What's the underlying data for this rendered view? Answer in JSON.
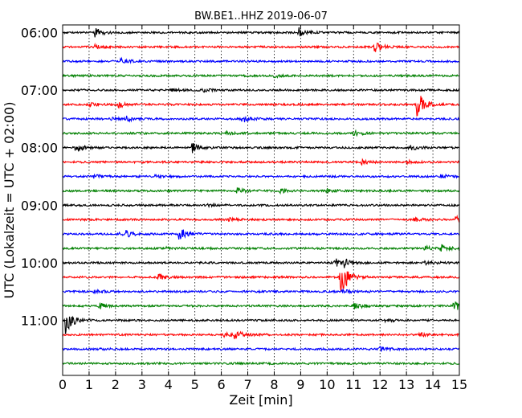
{
  "chart_data": {
    "type": "line",
    "title": "BW.BE1..HHZ 2019-06-07",
    "xlabel": "Zeit  [min]",
    "ylabel": "UTC (Lokalzeit = UTC + 02:00)",
    "xlim": [
      0,
      15
    ],
    "x_ticks": [
      "0",
      "1",
      "2",
      "3",
      "4",
      "5",
      "6",
      "7",
      "8",
      "9",
      "10",
      "11",
      "12",
      "13",
      "14",
      "15"
    ],
    "y_tick_labels": [
      "06:00",
      "07:00",
      "08:00",
      "09:00",
      "10:00",
      "11:00"
    ],
    "x_grid": "dotted",
    "trace_interval_min": 15,
    "colors": [
      "#000000",
      "#ff0000",
      "#0000ff",
      "#008000"
    ],
    "traces": [
      {
        "start": "06:00",
        "color": "#000000",
        "events": [
          {
            "t": 1.2,
            "amp": 0.35
          },
          {
            "t": 8.9,
            "amp": 0.4
          }
        ]
      },
      {
        "start": "06:15",
        "color": "#ff0000",
        "events": [
          {
            "t": 11.8,
            "amp": 0.35
          },
          {
            "t": 1.2,
            "amp": 0.15
          }
        ]
      },
      {
        "start": "06:30",
        "color": "#0000ff",
        "events": [
          {
            "t": 2.2,
            "amp": 0.2
          }
        ]
      },
      {
        "start": "06:45",
        "color": "#008000",
        "events": [
          {
            "t": 8.0,
            "amp": 0.12
          }
        ]
      },
      {
        "start": "07:00",
        "color": "#000000",
        "events": [
          {
            "t": 4.1,
            "amp": 0.15
          },
          {
            "t": 5.3,
            "amp": 0.12
          }
        ]
      },
      {
        "start": "07:15",
        "color": "#ff0000",
        "events": [
          {
            "t": 13.4,
            "amp": 1.0
          },
          {
            "t": 2.1,
            "amp": 0.25
          },
          {
            "t": 1.0,
            "amp": 0.15
          }
        ]
      },
      {
        "start": "07:30",
        "color": "#0000ff",
        "events": [
          {
            "t": 6.8,
            "amp": 0.3
          },
          {
            "t": 2.4,
            "amp": 0.2
          },
          {
            "t": 1.8,
            "amp": 0.12
          }
        ]
      },
      {
        "start": "07:45",
        "color": "#008000",
        "events": [
          {
            "t": 11.0,
            "amp": 0.2
          },
          {
            "t": 6.2,
            "amp": 0.12
          }
        ]
      },
      {
        "start": "08:00",
        "color": "#000000",
        "events": [
          {
            "t": 0.5,
            "amp": 0.3
          },
          {
            "t": 4.9,
            "amp": 0.35
          },
          {
            "t": 13.1,
            "amp": 0.2
          }
        ]
      },
      {
        "start": "08:15",
        "color": "#ff0000",
        "events": [
          {
            "t": 11.3,
            "amp": 0.15
          },
          {
            "t": 13.0,
            "amp": 0.12
          }
        ]
      },
      {
        "start": "08:30",
        "color": "#0000ff",
        "events": [
          {
            "t": 1.2,
            "amp": 0.15
          },
          {
            "t": 14.3,
            "amp": 0.15
          },
          {
            "t": 3.5,
            "amp": 0.1
          }
        ]
      },
      {
        "start": "08:45",
        "color": "#008000",
        "events": [
          {
            "t": 6.6,
            "amp": 0.2
          },
          {
            "t": 8.2,
            "amp": 0.15
          },
          {
            "t": 10.0,
            "amp": 0.15
          }
        ]
      },
      {
        "start": "09:00",
        "color": "#000000",
        "events": [
          {
            "t": 5.5,
            "amp": 0.1
          }
        ]
      },
      {
        "start": "09:15",
        "color": "#ff0000",
        "events": [
          {
            "t": 14.8,
            "amp": 0.3
          },
          {
            "t": 13.3,
            "amp": 0.15
          },
          {
            "t": 6.3,
            "amp": 0.1
          }
        ]
      },
      {
        "start": "09:30",
        "color": "#0000ff",
        "events": [
          {
            "t": 4.4,
            "amp": 0.5
          },
          {
            "t": 2.4,
            "amp": 0.2
          },
          {
            "t": 2.1,
            "amp": 0.12
          }
        ]
      },
      {
        "start": "09:45",
        "color": "#008000",
        "events": [
          {
            "t": 14.3,
            "amp": 0.3
          },
          {
            "t": 3.8,
            "amp": 0.1
          },
          {
            "t": 13.7,
            "amp": 0.15
          }
        ]
      },
      {
        "start": "10:00",
        "color": "#000000",
        "events": [
          {
            "t": 10.3,
            "amp": 0.3
          },
          {
            "t": 10.6,
            "amp": 0.35
          },
          {
            "t": 13.7,
            "amp": 0.15
          }
        ]
      },
      {
        "start": "10:15",
        "color": "#ff0000",
        "events": [
          {
            "t": 10.5,
            "amp": 1.4
          },
          {
            "t": 3.6,
            "amp": 0.2
          }
        ]
      },
      {
        "start": "10:30",
        "color": "#0000ff",
        "events": [
          {
            "t": 1.2,
            "amp": 0.2
          },
          {
            "t": 10.6,
            "amp": 0.15
          }
        ]
      },
      {
        "start": "10:45",
        "color": "#008000",
        "events": [
          {
            "t": 14.8,
            "amp": 0.5
          },
          {
            "t": 11.0,
            "amp": 0.3
          },
          {
            "t": 1.4,
            "amp": 0.2
          }
        ]
      },
      {
        "start": "11:00",
        "color": "#000000",
        "events": [
          {
            "t": 0.1,
            "amp": 1.0
          },
          {
            "t": 12.2,
            "amp": 0.12
          }
        ]
      },
      {
        "start": "11:15",
        "color": "#ff0000",
        "events": [
          {
            "t": 6.5,
            "amp": 0.3
          },
          {
            "t": 6.1,
            "amp": 0.15
          },
          {
            "t": 13.5,
            "amp": 0.15
          }
        ]
      },
      {
        "start": "11:30",
        "color": "#0000ff",
        "events": [
          {
            "t": 12.0,
            "amp": 0.15
          },
          {
            "t": 1.4,
            "amp": 0.1
          }
        ]
      },
      {
        "start": "11:45",
        "color": "#008000",
        "events": []
      }
    ]
  }
}
